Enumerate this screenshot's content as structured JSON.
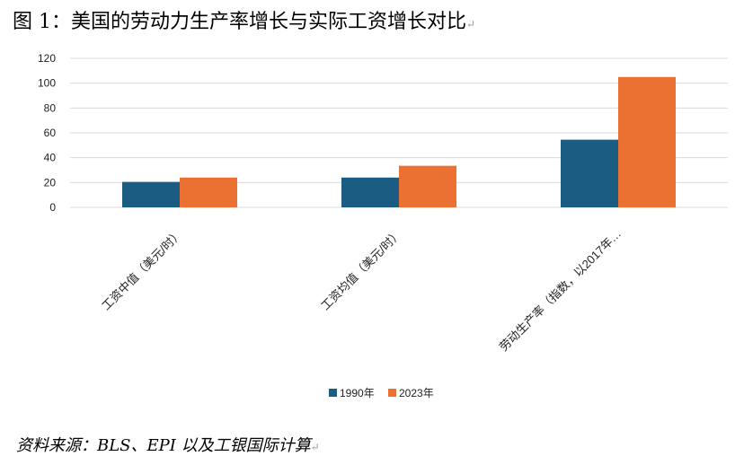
{
  "title": "图 1：美国的劳动力生产率增长与实际工资增长对比",
  "source": "资料来源：BLS、EPI 以及工银国际计算",
  "para_mark": "↵",
  "chart_data": {
    "type": "bar",
    "categories": [
      "工资中值（美元/时）",
      "工资均值（美元/时）",
      "劳动生产率（指数，以2017年…"
    ],
    "series": [
      {
        "name": "1990年",
        "color": "#1b5d82",
        "values": [
          20.5,
          24,
          54.5
        ]
      },
      {
        "name": "2023年",
        "color": "#eb7133",
        "values": [
          24,
          33.5,
          105
        ]
      }
    ],
    "ylim": [
      0,
      120
    ],
    "yticks": [
      0,
      20,
      40,
      60,
      80,
      100,
      120
    ],
    "grid": true,
    "legend": "bottom"
  }
}
